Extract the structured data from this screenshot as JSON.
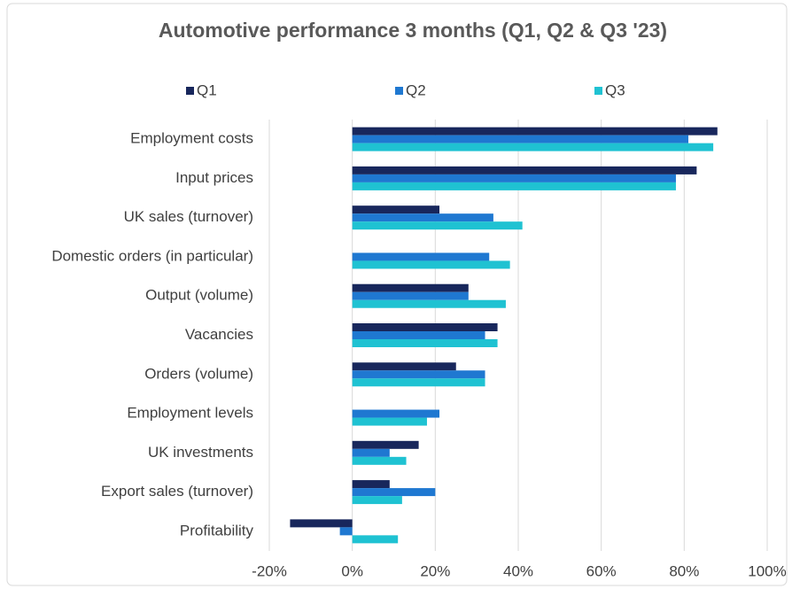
{
  "chart_data": {
    "type": "hbar",
    "title": "Automotive performance 3 months (Q1, Q2 & Q3 '23)",
    "categories": [
      "Employment costs",
      "Input prices",
      "UK sales (turnover)",
      "Domestic orders (in particular)",
      "Output (volume)",
      "Vacancies",
      "Orders (volume)",
      "Employment levels",
      "UK investments",
      "Export sales (turnover)",
      "Profitability"
    ],
    "series": [
      {
        "name": "Q1",
        "color": "#18275c",
        "values": [
          88,
          83,
          21,
          0,
          28,
          35,
          25,
          0,
          16,
          9,
          -15
        ]
      },
      {
        "name": "Q2",
        "color": "#1f78d1",
        "values": [
          81,
          78,
          34,
          33,
          28,
          32,
          32,
          21,
          9,
          20,
          -3
        ]
      },
      {
        "name": "Q3",
        "color": "#1fc2d2",
        "values": [
          87,
          78,
          41,
          38,
          37,
          35,
          32,
          18,
          13,
          12,
          11
        ]
      }
    ],
    "xlim": [
      -20,
      100
    ],
    "xticks": [
      {
        "value": -20,
        "label": "-20%"
      },
      {
        "value": 0,
        "label": "0%"
      },
      {
        "value": 20,
        "label": "20%"
      },
      {
        "value": 40,
        "label": "40%"
      },
      {
        "value": 60,
        "label": "60%"
      },
      {
        "value": 80,
        "label": "80%"
      },
      {
        "value": 100,
        "label": "100%"
      }
    ],
    "grid": true,
    "legend": "top"
  }
}
